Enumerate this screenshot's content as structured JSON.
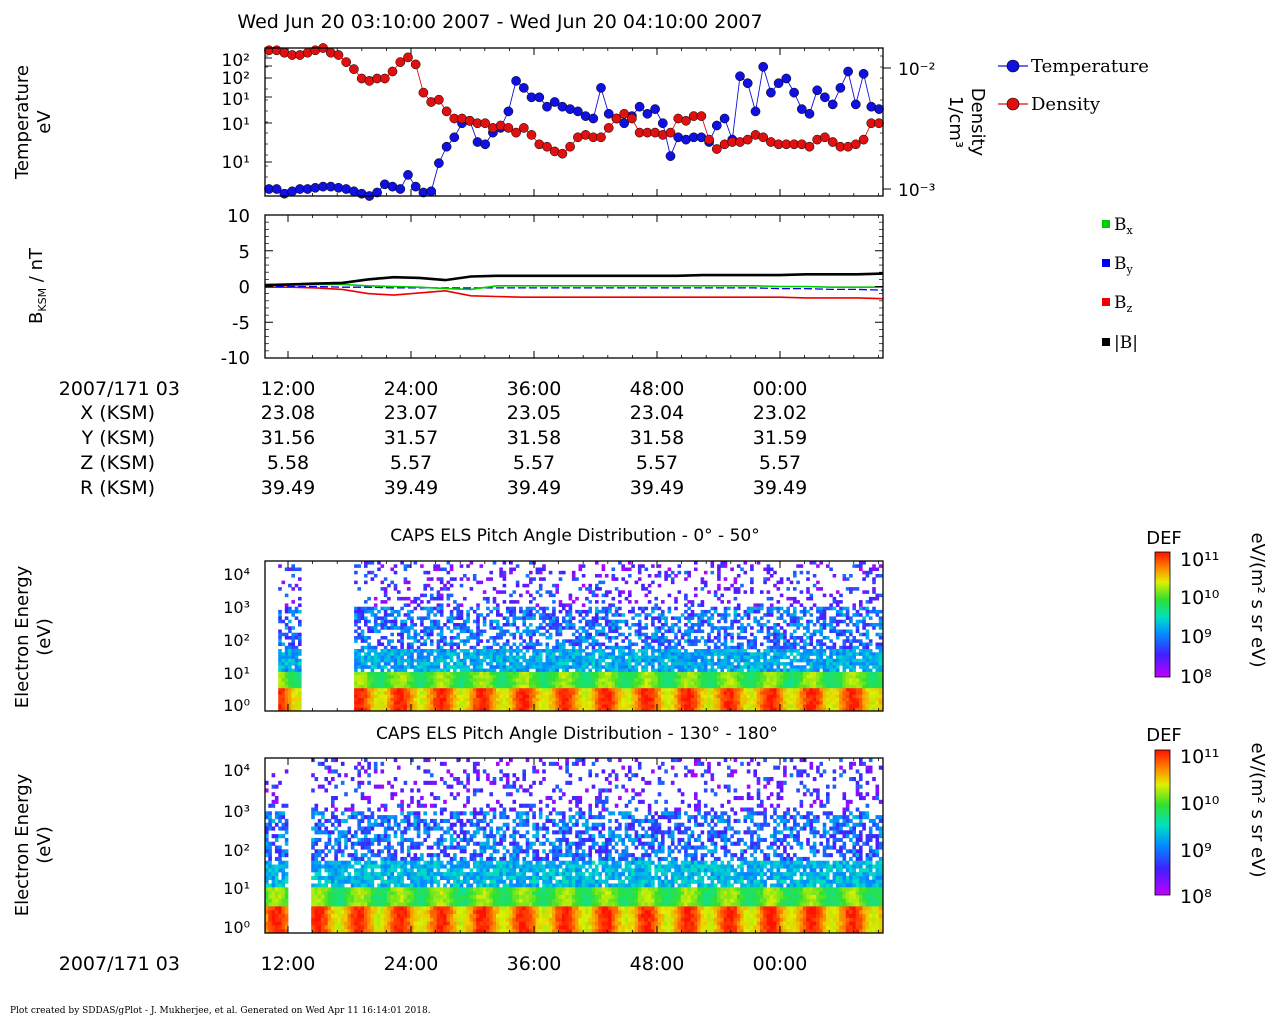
{
  "title": "Wed Jun 20 03:10:00 2007 - Wed Jun 20 04:10:00 2007",
  "footer": "Plot created by SDDAS/gPlot - J. Mukherjee, et al.  Generated on Wed Apr 11 16:14:01 2018.",
  "colors": {
    "temperature": "#1010e0",
    "density": "#e01010",
    "bx": "#00cc00",
    "by": "#0000ee",
    "bz": "#ee0000",
    "btot": "#000000"
  },
  "chart_data": [
    {
      "type": "scatter",
      "panel": "temperature-density",
      "ylabel": [
        "Temperature",
        "eV"
      ],
      "y2label": [
        "Density",
        "1/cm³"
      ],
      "yscale": "log",
      "y_ticks": [
        "10²",
        "10²",
        "10¹",
        "10¹",
        "10¹"
      ],
      "y2_ticks": [
        "10⁻²",
        "10⁻³"
      ],
      "legend_placement": "right",
      "series": [
        {
          "name": "Temperature",
          "values": [
            1.6,
            1.6,
            1.4,
            1.5,
            1.6,
            1.6,
            1.65,
            1.7,
            1.7,
            1.65,
            1.6,
            1.5,
            1.4,
            1.3,
            1.45,
            1.8,
            1.7,
            1.6,
            2.2,
            1.7,
            1.45,
            1.5,
            2.7,
            3.4,
            3.8,
            4.4,
            4.5,
            3.6,
            3.5,
            4.0,
            4.2,
            4.9,
            6.2,
            5.9,
            5.5,
            5.5,
            5.1,
            5.3,
            5.1,
            5.0,
            4.9,
            4.7,
            4.6,
            5.9,
            4.8,
            4.6,
            4.4,
            4.7,
            5.1,
            4.8,
            5.0,
            4.4,
            3.0,
            3.8,
            3.7,
            3.8,
            3.8,
            3.6,
            4.3,
            4.6,
            3.7,
            6.4,
            6.1,
            4.9,
            6.8,
            5.7,
            6.1,
            6.3,
            5.7,
            5.0,
            4.8,
            5.8,
            5.5,
            5.2,
            5.9,
            6.6,
            5.2,
            6.5,
            5.1,
            5.0
          ]
        },
        {
          "name": "Density",
          "values": [
            7.5,
            7.5,
            7.4,
            7.3,
            7.3,
            7.4,
            7.5,
            7.6,
            7.4,
            7.3,
            7.0,
            6.7,
            6.3,
            6.2,
            6.3,
            6.3,
            6.6,
            7.0,
            7.2,
            6.9,
            5.7,
            5.3,
            5.4,
            4.9,
            4.6,
            4.6,
            4.5,
            4.4,
            4.4,
            4.2,
            4.3,
            4.2,
            4.0,
            4.2,
            3.9,
            3.5,
            3.4,
            3.2,
            3.1,
            3.4,
            3.8,
            3.9,
            3.8,
            3.8,
            4.2,
            4.6,
            4.8,
            4.6,
            4.0,
            4.0,
            4.0,
            3.9,
            4.0,
            4.6,
            4.5,
            4.7,
            4.7,
            3.7,
            3.3,
            3.5,
            3.6,
            3.6,
            3.7,
            3.9,
            3.8,
            3.6,
            3.5,
            3.5,
            3.5,
            3.5,
            3.4,
            3.7,
            3.8,
            3.6,
            3.4,
            3.4,
            3.5,
            3.7,
            4.4,
            4.4
          ]
        }
      ]
    },
    {
      "type": "line",
      "panel": "magnetic-field",
      "ylabel": "B_KSM / nT",
      "ylim": [
        -10,
        10
      ],
      "y_ticks": [
        "10",
        "5",
        "0",
        "-5",
        "-10"
      ],
      "legend_placement": "right",
      "series": [
        {
          "name": "Bx",
          "label_main": "B",
          "label_sub": "x",
          "values": [
            0.2,
            0.2,
            0.3,
            0.3,
            0.1,
            0.0,
            -0.1,
            -0.3,
            -0.4,
            0.1,
            0.1,
            0.1,
            0.1,
            0.1,
            0.1,
            0.1,
            0.1,
            0.1,
            0.1,
            0.1,
            0.0,
            0.0,
            -0.1,
            -0.1,
            -0.1
          ]
        },
        {
          "name": "By",
          "label_main": "B",
          "label_sub": "y",
          "values": [
            0.0,
            0.0,
            0.0,
            -0.1,
            -0.1,
            -0.2,
            -0.2,
            -0.2,
            -0.2,
            -0.2,
            -0.2,
            -0.2,
            -0.2,
            -0.2,
            -0.2,
            -0.2,
            -0.2,
            -0.2,
            -0.2,
            -0.2,
            -0.3,
            -0.3,
            -0.4,
            -0.4,
            -0.5
          ]
        },
        {
          "name": "Bz",
          "label_main": "B",
          "label_sub": "z",
          "values": [
            -0.1,
            -0.1,
            -0.2,
            -0.4,
            -1.0,
            -1.2,
            -0.9,
            -0.6,
            -1.3,
            -1.4,
            -1.5,
            -1.5,
            -1.5,
            -1.5,
            -1.5,
            -1.5,
            -1.5,
            -1.5,
            -1.5,
            -1.5,
            -1.5,
            -1.6,
            -1.6,
            -1.6,
            -1.7
          ]
        },
        {
          "name": "|B|",
          "label_main": "|B|",
          "label_sub": "",
          "values": [
            0.2,
            0.3,
            0.4,
            0.5,
            1.0,
            1.3,
            1.2,
            0.9,
            1.4,
            1.5,
            1.5,
            1.5,
            1.5,
            1.5,
            1.5,
            1.5,
            1.5,
            1.6,
            1.6,
            1.6,
            1.6,
            1.7,
            1.7,
            1.7,
            1.8
          ]
        }
      ]
    },
    {
      "type": "heatmap",
      "panel": "pad-0-50",
      "title": "CAPS ELS Pitch Angle Distribution - 0° - 50°",
      "ylabel": [
        "Electron Energy",
        "(eV)"
      ],
      "y_ticks": [
        "10⁴",
        "10³",
        "10²",
        "10¹",
        "10⁰"
      ],
      "colorbar": {
        "label": "DEF",
        "units": "eV/(m² s sr eV)",
        "ticks": [
          "10¹¹",
          "10¹⁰",
          "10⁹",
          "10⁸"
        ]
      }
    },
    {
      "type": "heatmap",
      "panel": "pad-130-180",
      "title": "CAPS ELS Pitch Angle Distribution - 130° - 180°",
      "ylabel": [
        "Electron Energy",
        "(eV)"
      ],
      "y_ticks": [
        "10⁴",
        "10³",
        "10²",
        "10¹",
        "10⁰"
      ],
      "colorbar": {
        "label": "DEF",
        "units": "eV/(m² s sr eV)",
        "ticks": [
          "10¹¹",
          "10¹⁰",
          "10⁹",
          "10⁸"
        ]
      }
    }
  ],
  "ephemeris": {
    "date_label": "2007/171 03",
    "times": [
      "12:00",
      "24:00",
      "36:00",
      "48:00",
      "00:00"
    ],
    "rows": [
      {
        "label": "X (KSM)",
        "values": [
          "23.08",
          "23.07",
          "23.05",
          "23.04",
          "23.02"
        ]
      },
      {
        "label": "Y (KSM)",
        "values": [
          "31.56",
          "31.57",
          "31.58",
          "31.58",
          "31.59"
        ]
      },
      {
        "label": "Z (KSM)",
        "values": [
          "5.58",
          "5.57",
          "5.57",
          "5.57",
          "5.57"
        ]
      },
      {
        "label": "R (KSM)",
        "values": [
          "39.49",
          "39.49",
          "39.49",
          "39.49",
          "39.49"
        ]
      }
    ]
  },
  "bottom_axis": {
    "date_label": "2007/171 03",
    "times": [
      "12:00",
      "24:00",
      "36:00",
      "48:00",
      "00:00"
    ]
  }
}
